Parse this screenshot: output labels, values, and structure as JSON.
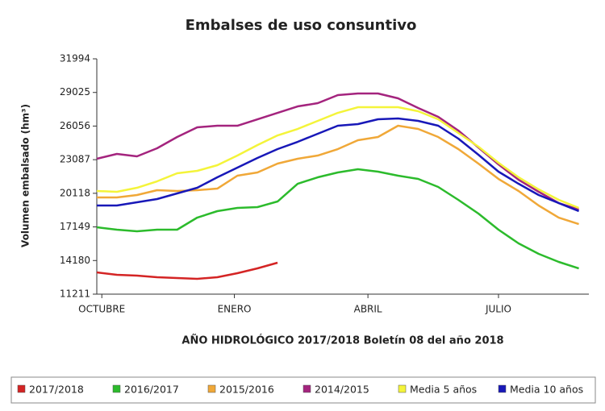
{
  "chart_data": {
    "type": "line",
    "title": "Embalses de uso consuntivo",
    "subtitle": "AÑO HIDROLÓGICO 2017/2018 Boletín 08 del año 2018",
    "y_label": "Volumen embalsado (hm³)",
    "x": [
      0,
      2,
      4,
      6,
      8,
      10,
      12,
      14,
      16,
      18,
      20,
      22,
      24,
      26,
      28,
      30,
      32,
      34,
      36,
      38,
      40,
      42,
      44,
      46,
      48
    ],
    "xlim": [
      0,
      49
    ],
    "xticks": [
      {
        "value": 0.5,
        "label": "OCTUBRE"
      },
      {
        "value": 13.7,
        "label": "ENERO"
      },
      {
        "value": 27,
        "label": "ABRIL"
      },
      {
        "value": 40,
        "label": "JULIO"
      }
    ],
    "ylim": [
      11211,
      31994
    ],
    "yticks": [
      11211,
      14180,
      17149,
      20118,
      23087,
      26056,
      29025,
      31994
    ],
    "legend": "bottom",
    "series": [
      {
        "name": "2017/2018",
        "color": "#d42424",
        "values": [
          13133,
          12919,
          12848,
          12706,
          12634,
          12563,
          12706,
          13061,
          13488,
          13987,
          null,
          null,
          null,
          null,
          null,
          null,
          null,
          null,
          null,
          null,
          null,
          null,
          null,
          null,
          null
        ]
      },
      {
        "name": "2016/2017",
        "color": "#2cbb2c",
        "values": [
          17118,
          16905,
          16762,
          16905,
          16905,
          17972,
          18542,
          18826,
          18897,
          19396,
          20961,
          21531,
          21958,
          22242,
          22029,
          21673,
          21388,
          20677,
          19538,
          18328,
          16905,
          15695,
          14770,
          14058,
          13488
        ]
      },
      {
        "name": "2015/2016",
        "color": "#f0a838",
        "values": [
          19751,
          19751,
          19965,
          20392,
          20321,
          20392,
          20534,
          21673,
          21958,
          22741,
          23168,
          23452,
          24022,
          24804,
          25089,
          26086,
          25801,
          25089,
          24022,
          22741,
          21388,
          20321,
          19040,
          17972,
          17403
        ]
      },
      {
        "name": "2014/2015",
        "color": "#a4247e",
        "values": [
          23168,
          23595,
          23381,
          24093,
          25089,
          25943,
          26086,
          26086,
          26655,
          27224,
          27794,
          28078,
          28790,
          28932,
          28932,
          28505,
          27651,
          26868,
          25659,
          24164,
          22669,
          21317,
          20250,
          19253,
          18684
        ]
      },
      {
        "name": "Media 5 años",
        "color": "#f4f43a",
        "values": [
          20321,
          20250,
          20605,
          21175,
          21887,
          22100,
          22598,
          23452,
          24377,
          25231,
          25801,
          26513,
          27224,
          27722,
          27722,
          27722,
          27367,
          26655,
          25445,
          24235,
          22812,
          21531,
          20463,
          19538,
          18826
        ]
      },
      {
        "name": "Media 10 años",
        "color": "#1818b8",
        "values": [
          19040,
          19040,
          19324,
          19609,
          20107,
          20605,
          21531,
          22385,
          23239,
          24022,
          24662,
          25374,
          26086,
          26228,
          26655,
          26726,
          26513,
          26086,
          24947,
          23523,
          22029,
          20961,
          19965,
          19253,
          18542
        ]
      }
    ]
  }
}
